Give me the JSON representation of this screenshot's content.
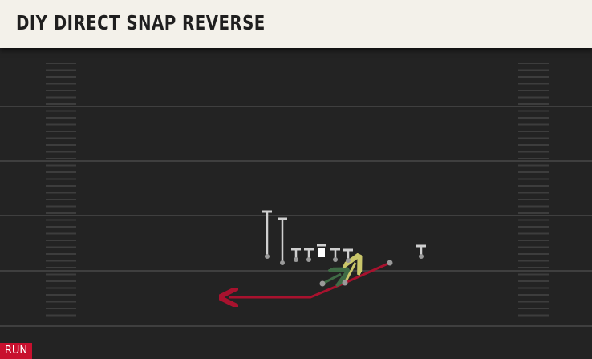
{
  "header": {
    "title": "DIY DIRECT SNAP REVERSE"
  },
  "tag": {
    "label": "RUN"
  }
}
